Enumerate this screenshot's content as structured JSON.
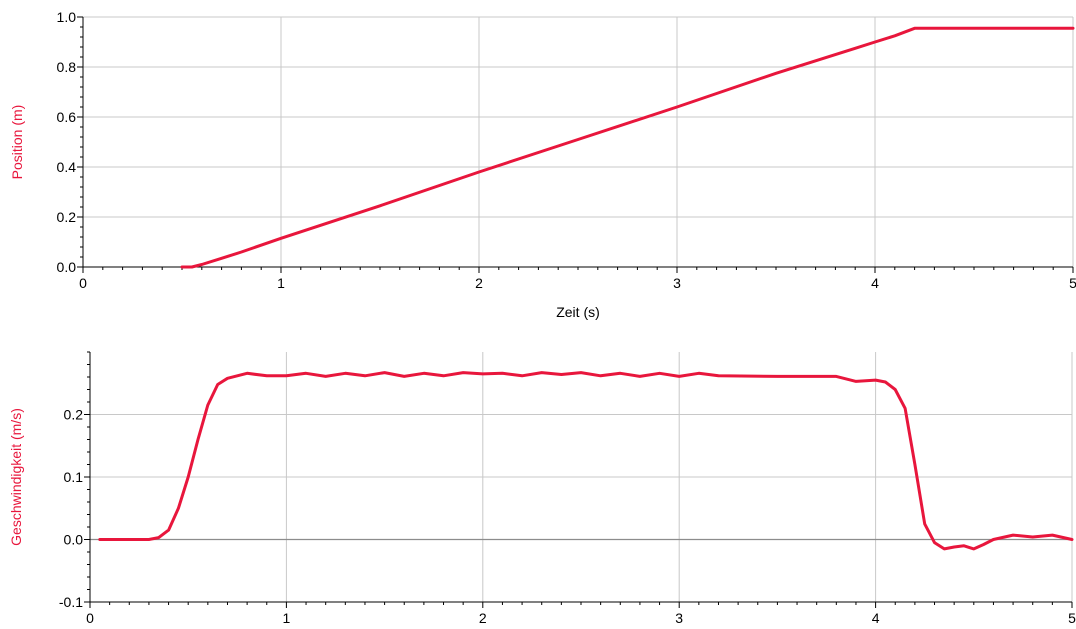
{
  "colors": {
    "series": "#e8163c",
    "grid": "#c8c8c8",
    "axis": "#000000",
    "zero_line": "#8c8c8c"
  },
  "chart_data": [
    {
      "type": "line",
      "title": "",
      "xlabel": "Zeit (s)",
      "ylabel": "Position (m)",
      "xlim": [
        0,
        5
      ],
      "ylim": [
        0,
        1.0
      ],
      "x_ticks": [
        0,
        1,
        2,
        3,
        4,
        5
      ],
      "x_tick_labels": [
        "0",
        "1",
        "2",
        "3",
        "4",
        "5"
      ],
      "y_ticks": [
        0,
        0.2,
        0.4,
        0.6,
        0.8,
        1.0
      ],
      "y_tick_labels": [
        "0.0",
        "0.2",
        "0.4",
        "0.6",
        "0.8",
        "1.0"
      ],
      "grid": true,
      "series": [
        {
          "x": [
            0.5,
            0.55,
            0.6,
            0.7,
            0.8,
            1.0,
            1.5,
            2.0,
            2.5,
            3.0,
            3.5,
            3.9,
            4.0,
            4.1,
            4.2,
            4.5,
            5.0
          ],
          "y": [
            0.0,
            0.0,
            0.01,
            0.035,
            0.06,
            0.115,
            0.245,
            0.38,
            0.51,
            0.64,
            0.775,
            0.875,
            0.9,
            0.925,
            0.955,
            0.955,
            0.955
          ]
        }
      ]
    },
    {
      "type": "line",
      "title": "",
      "xlabel": "",
      "ylabel": "Geschwindigkeit (m/s)",
      "xlim": [
        0,
        5
      ],
      "ylim": [
        -0.1,
        0.3
      ],
      "x_ticks": [
        0,
        1,
        2,
        3,
        4,
        5
      ],
      "x_tick_labels": [
        "0",
        "1",
        "2",
        "3",
        "4",
        "5"
      ],
      "y_ticks": [
        -0.1,
        0.0,
        0.1,
        0.2
      ],
      "y_tick_labels": [
        "-0.1",
        "0.0",
        "0.1",
        "0.2"
      ],
      "grid": true,
      "series": [
        {
          "x": [
            0.05,
            0.3,
            0.35,
            0.4,
            0.45,
            0.5,
            0.55,
            0.6,
            0.65,
            0.7,
            0.8,
            0.9,
            1.0,
            1.1,
            1.2,
            1.3,
            1.4,
            1.5,
            1.6,
            1.7,
            1.8,
            1.9,
            2.0,
            2.1,
            2.2,
            2.3,
            2.4,
            2.5,
            2.6,
            2.7,
            2.8,
            2.9,
            3.0,
            3.1,
            3.2,
            3.5,
            3.8,
            3.9,
            4.0,
            4.05,
            4.1,
            4.15,
            4.2,
            4.25,
            4.3,
            4.35,
            4.4,
            4.45,
            4.5,
            4.55,
            4.6,
            4.7,
            4.8,
            4.9,
            5.0
          ],
          "y": [
            0.0,
            0.0,
            0.003,
            0.015,
            0.05,
            0.1,
            0.16,
            0.215,
            0.248,
            0.258,
            0.266,
            0.262,
            0.262,
            0.266,
            0.261,
            0.266,
            0.262,
            0.267,
            0.261,
            0.266,
            0.262,
            0.267,
            0.265,
            0.266,
            0.262,
            0.267,
            0.264,
            0.267,
            0.262,
            0.266,
            0.261,
            0.266,
            0.261,
            0.266,
            0.262,
            0.261,
            0.261,
            0.253,
            0.255,
            0.252,
            0.24,
            0.21,
            0.12,
            0.025,
            -0.005,
            -0.015,
            -0.012,
            -0.01,
            -0.015,
            -0.008,
            0.0,
            0.007,
            0.004,
            0.007,
            0.0
          ]
        }
      ]
    }
  ]
}
